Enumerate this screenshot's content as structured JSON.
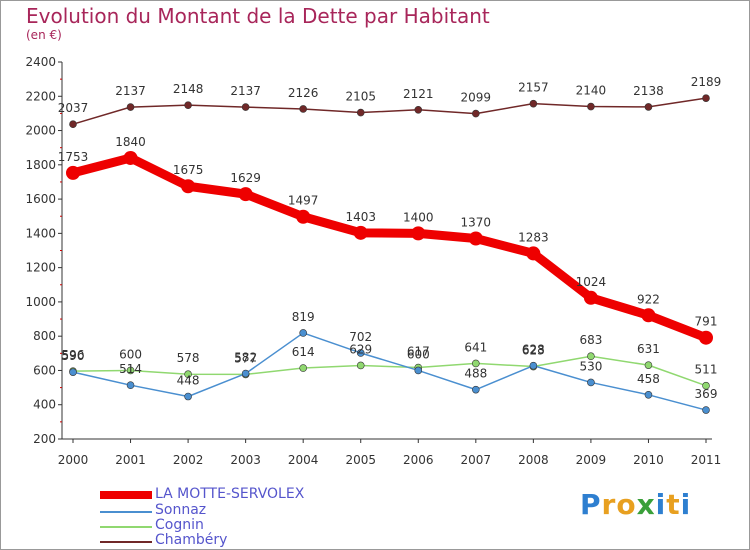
{
  "header": {
    "title": "Evolution du Montant de la Dette par Habitant",
    "subtitle": "(en €)"
  },
  "chart_data": {
    "type": "line",
    "title": "Evolution du Montant de la Dette par Habitant",
    "subtitle": "(en €)",
    "xlabel": "",
    "ylabel": "",
    "x": [
      2000,
      2001,
      2002,
      2003,
      2004,
      2005,
      2006,
      2007,
      2008,
      2009,
      2010,
      2011
    ],
    "ylim": [
      200,
      2400
    ],
    "yticks": [
      200,
      400,
      600,
      800,
      1000,
      1200,
      1400,
      1600,
      1800,
      2000,
      2200,
      2400
    ],
    "grid": false,
    "legend_position": "bottom-left",
    "series": [
      {
        "name": "LA MOTTE-SERVOLEX",
        "color": "#ee0000",
        "values": [
          1753,
          1840,
          1675,
          1629,
          1497,
          1403,
          1400,
          1370,
          1283,
          1024,
          922,
          791
        ]
      },
      {
        "name": "Sonnaz",
        "color": "#4a8fd0",
        "values": [
          590,
          514,
          448,
          582,
          819,
          702,
          600,
          488,
          628,
          530,
          458,
          369
        ]
      },
      {
        "name": "Cognin",
        "color": "#90d870",
        "values": [
          596,
          600,
          578,
          577,
          614,
          629,
          617,
          641,
          623,
          683,
          631,
          511
        ]
      },
      {
        "name": "Chambéry",
        "color": "#702828",
        "values": [
          2037,
          2137,
          2148,
          2137,
          2126,
          2105,
          2121,
          2099,
          2157,
          2140,
          2138,
          2189
        ]
      }
    ]
  },
  "legend": [
    {
      "label": "LA MOTTE-SERVOLEX",
      "color": "#ee0000"
    },
    {
      "label": "Sonnaz",
      "color": "#4a8fd0"
    },
    {
      "label": "Cognin",
      "color": "#90d870"
    },
    {
      "label": "Chambéry",
      "color": "#702828"
    }
  ],
  "logo": {
    "letters": [
      "P",
      "r",
      "o",
      "x",
      "i",
      "t",
      "i"
    ],
    "colors": [
      "#2e7fd0",
      "#e8a020",
      "#e8a020",
      "#3aa03a",
      "#2e7fd0",
      "#e8a020",
      "#2e7fd0"
    ]
  }
}
